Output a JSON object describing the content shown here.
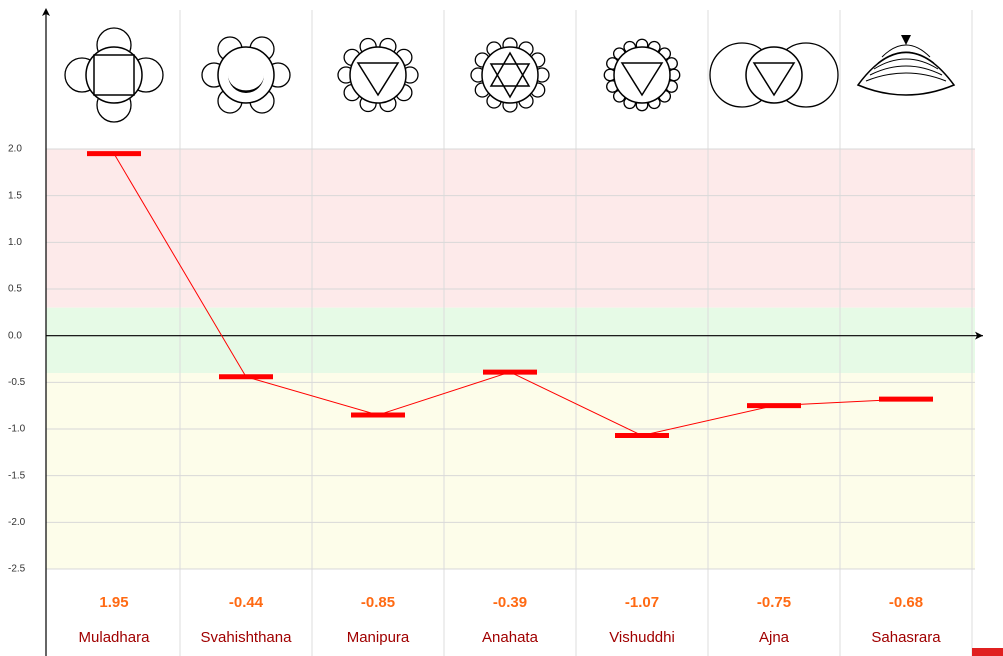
{
  "chart_data": {
    "type": "step-line",
    "categories": [
      "Muladhara",
      "Svahishthana",
      "Manipura",
      "Anahata",
      "Vishuddhi",
      "Ajna",
      "Sahasrara"
    ],
    "values": [
      1.95,
      -0.44,
      -0.85,
      -0.39,
      -1.07,
      -0.75,
      -0.68
    ],
    "color": "#ff0000",
    "ylim": [
      -2.5,
      2.0
    ],
    "yticks": [
      {
        "value": 2.0,
        "label": "2.0"
      },
      1.5,
      {
        "value": 1.0,
        "label": "1.0"
      },
      0.5,
      {
        "value": 0.0,
        "label": "0.0"
      },
      -0.5,
      {
        "value": -1.0,
        "label": "-1.0"
      },
      -1.5,
      {
        "value": -2.0,
        "label": "-2.0"
      },
      -2.5
    ],
    "bands": [
      {
        "from": 0.3,
        "to": 2.0,
        "color": "#fdeaea"
      },
      {
        "from": -0.4,
        "to": 0.3,
        "color": "#e6fae6"
      },
      {
        "from": -2.5,
        "to": -0.4,
        "color": "#fdfdea"
      }
    ],
    "grid": true
  }
}
